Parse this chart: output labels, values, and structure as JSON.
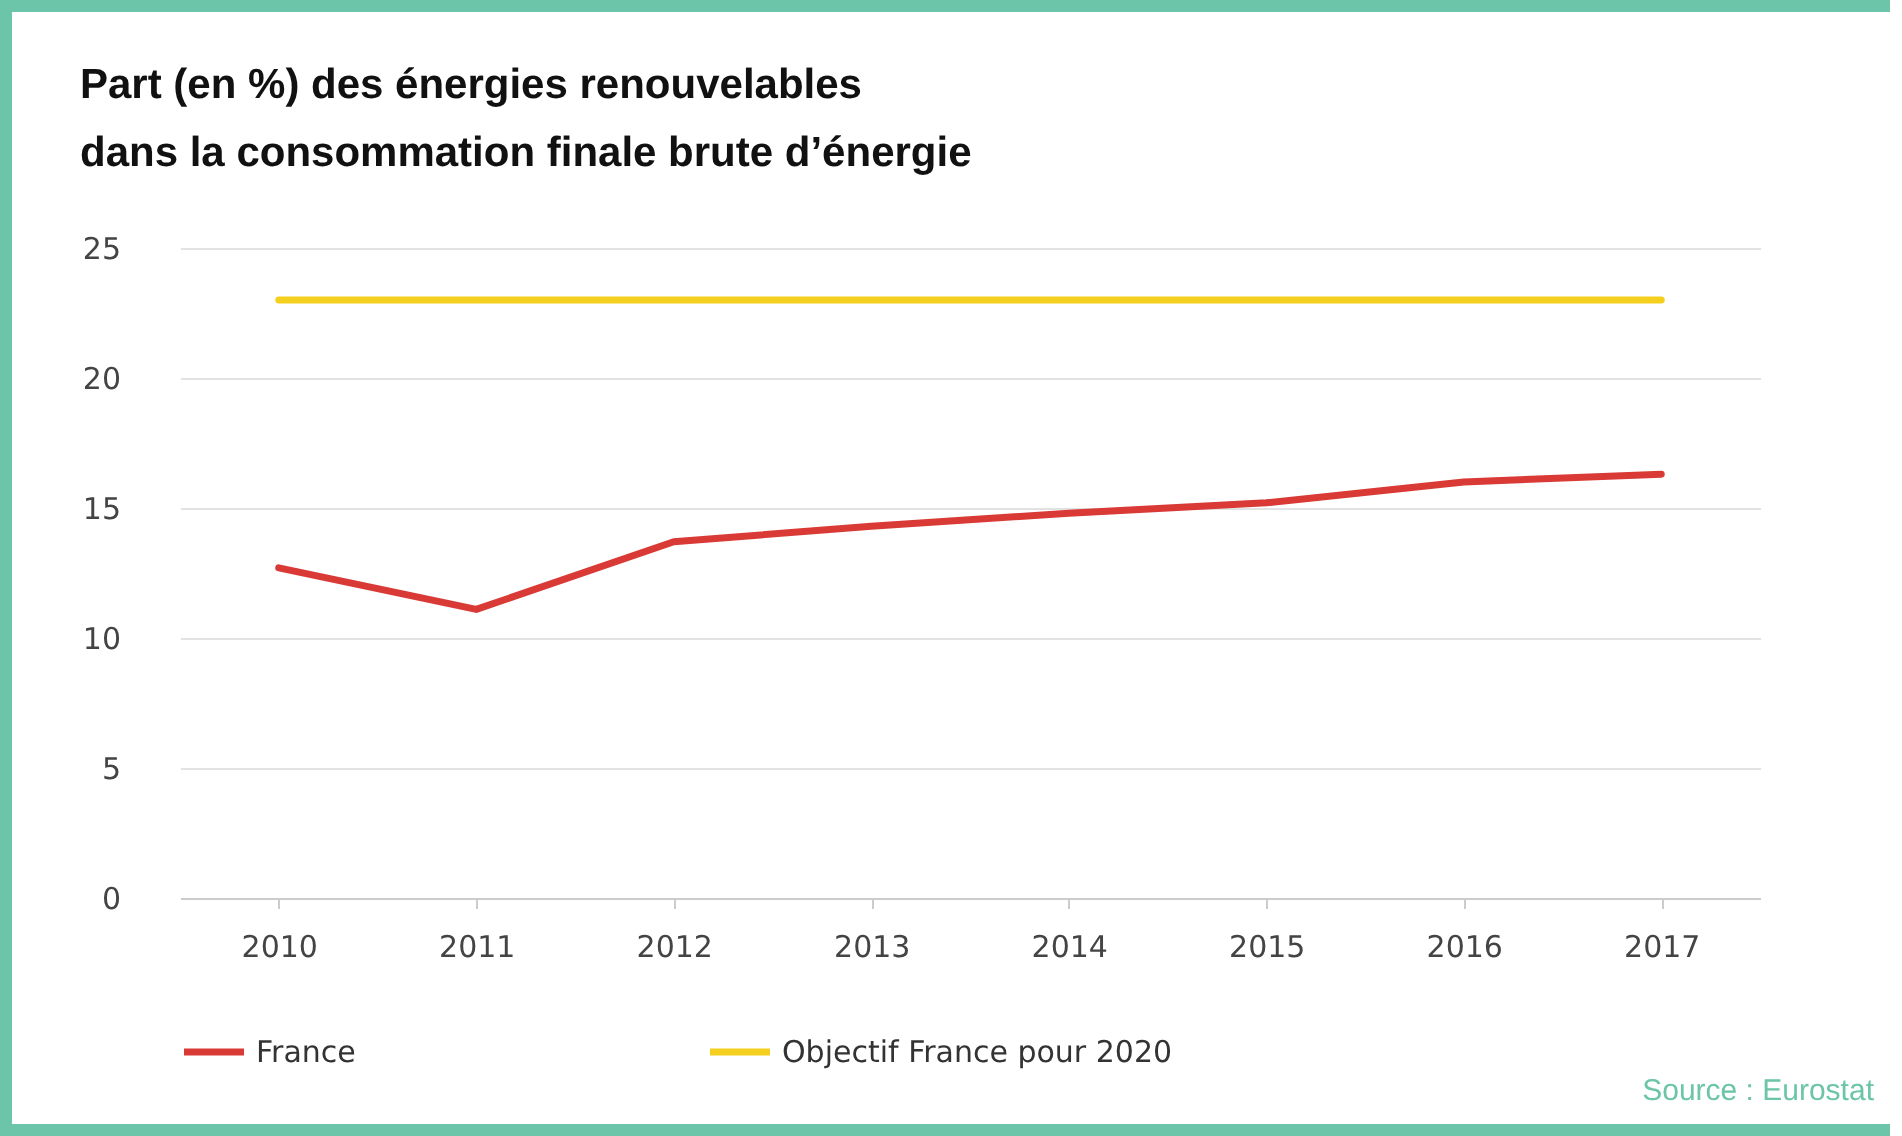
{
  "chart_data": {
    "type": "line",
    "title": [
      "Part (en %) des énergies renouvelables",
      "dans la consommation finale brute d’énergie"
    ],
    "categories": [
      "2010",
      "2011",
      "2012",
      "2013",
      "2014",
      "2015",
      "2016",
      "2017"
    ],
    "series": [
      {
        "name": "France",
        "color": "#d93a35",
        "values": [
          12.7,
          11.1,
          13.7,
          14.3,
          14.8,
          15.2,
          16.0,
          16.3
        ]
      },
      {
        "name": "Objectif France pour 2020",
        "color": "#f5cf1d",
        "values": [
          23,
          23,
          23,
          23,
          23,
          23,
          23,
          23
        ]
      }
    ],
    "ylim": [
      0,
      25
    ],
    "yticks": [
      0,
      5,
      10,
      15,
      20,
      25
    ],
    "grid": "y",
    "legend": "bottom",
    "marker": "none",
    "line_style": "solid",
    "annotations": [
      "Source : Eurostat"
    ]
  }
}
